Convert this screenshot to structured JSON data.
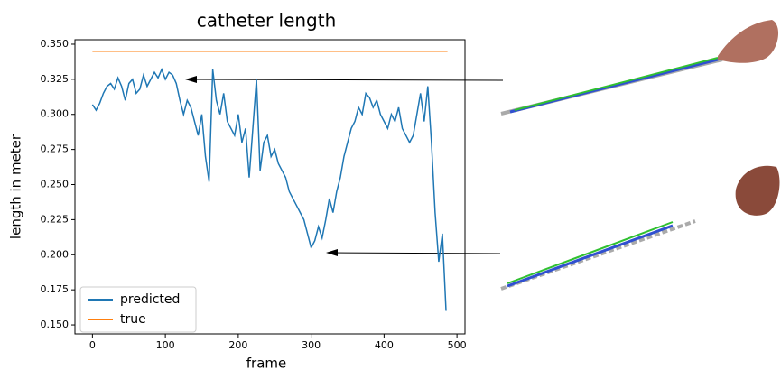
{
  "chart_data": {
    "type": "line",
    "title": "catheter length",
    "x_label": "frame",
    "y_label": "length in meter",
    "xlim": [
      -24,
      511
    ],
    "ylim": [
      0.1436,
      0.3532
    ],
    "xticks": [
      0,
      100,
      200,
      300,
      400,
      500
    ],
    "yticks": [
      {
        "value": 0.15,
        "label": "0.150"
      },
      {
        "value": 0.175,
        "label": "0.175"
      },
      {
        "value": 0.2,
        "label": "0.200"
      },
      {
        "value": 0.225,
        "label": "0.225"
      },
      {
        "value": 0.25,
        "label": "0.250"
      },
      {
        "value": 0.275,
        "label": "0.275"
      },
      {
        "value": 0.3,
        "label": "0.300"
      },
      {
        "value": 0.325,
        "label": "0.325"
      },
      {
        "value": 0.35,
        "label": "0.350"
      }
    ],
    "grid": false,
    "legend": "lower left",
    "series": [
      {
        "name": "predicted",
        "color": "#1f77b4",
        "x": [
          0,
          5,
          10,
          15,
          20,
          25,
          30,
          35,
          40,
          45,
          50,
          55,
          60,
          65,
          70,
          75,
          80,
          85,
          90,
          95,
          100,
          105,
          110,
          115,
          120,
          125,
          130,
          135,
          140,
          145,
          150,
          155,
          160,
          165,
          170,
          175,
          180,
          185,
          190,
          195,
          200,
          205,
          210,
          215,
          220,
          225,
          230,
          235,
          240,
          245,
          250,
          255,
          260,
          265,
          270,
          275,
          280,
          285,
          290,
          295,
          300,
          305,
          310,
          315,
          320,
          325,
          330,
          335,
          340,
          345,
          350,
          355,
          360,
          365,
          370,
          375,
          380,
          385,
          390,
          395,
          400,
          405,
          410,
          415,
          420,
          425,
          430,
          435,
          440,
          445,
          450,
          455,
          460,
          465,
          470,
          475,
          480,
          485
        ],
        "values": [
          0.307,
          0.303,
          0.308,
          0.315,
          0.32,
          0.322,
          0.318,
          0.326,
          0.32,
          0.31,
          0.322,
          0.325,
          0.315,
          0.318,
          0.328,
          0.32,
          0.325,
          0.33,
          0.326,
          0.332,
          0.325,
          0.33,
          0.328,
          0.322,
          0.31,
          0.3,
          0.31,
          0.305,
          0.295,
          0.285,
          0.3,
          0.27,
          0.252,
          0.332,
          0.31,
          0.3,
          0.315,
          0.295,
          0.29,
          0.285,
          0.3,
          0.28,
          0.29,
          0.255,
          0.29,
          0.325,
          0.26,
          0.28,
          0.285,
          0.27,
          0.275,
          0.265,
          0.26,
          0.255,
          0.245,
          0.24,
          0.235,
          0.23,
          0.225,
          0.215,
          0.205,
          0.21,
          0.22,
          0.212,
          0.225,
          0.24,
          0.23,
          0.245,
          0.255,
          0.27,
          0.28,
          0.29,
          0.295,
          0.305,
          0.3,
          0.315,
          0.312,
          0.305,
          0.31,
          0.3,
          0.295,
          0.29,
          0.3,
          0.295,
          0.305,
          0.29,
          0.285,
          0.28,
          0.285,
          0.3,
          0.315,
          0.295,
          0.32,
          0.28,
          0.23,
          0.195,
          0.215,
          0.16
        ]
      },
      {
        "name": "true",
        "color": "#ff7f0e",
        "x": [
          0,
          487
        ],
        "values": [
          0.345,
          0.345
        ]
      }
    ]
  }
}
